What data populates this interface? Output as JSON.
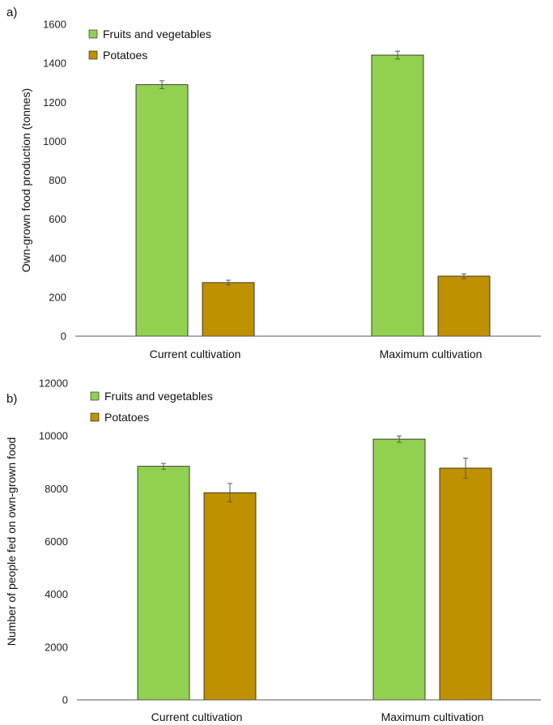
{
  "colors": {
    "fruits": "#92d050",
    "potatoes": "#bf9000",
    "axis": "#595959",
    "errorbar": "#595959"
  },
  "chart_data": [
    {
      "panel_label": "a)",
      "type": "bar",
      "ylabel": "Own-grown food production (tonnes)",
      "categories": [
        "Current cultivation",
        "Maximum cultivation"
      ],
      "ylim": [
        0,
        1600
      ],
      "yticks": [
        0,
        200,
        400,
        600,
        800,
        1000,
        1200,
        1400,
        1600
      ],
      "legend_position": "top-left",
      "series": [
        {
          "name": "Fruits and vegetables",
          "color": "#92d050",
          "values": [
            1290,
            1442
          ],
          "errors": [
            20,
            20
          ]
        },
        {
          "name": "Potatoes",
          "color": "#bf9000",
          "values": [
            275,
            308
          ],
          "errors": [
            12,
            12
          ]
        }
      ]
    },
    {
      "panel_label": "b)",
      "type": "bar",
      "ylabel": "Number of people fed on own-grown food",
      "categories": [
        "Current cultivation",
        "Maximum cultivation"
      ],
      "ylim": [
        0,
        12000
      ],
      "yticks": [
        0,
        2000,
        4000,
        6000,
        8000,
        10000,
        12000
      ],
      "legend_position": "top-left",
      "series": [
        {
          "name": "Fruits and vegetables",
          "color": "#92d050",
          "values": [
            8850,
            9880
          ],
          "errors": [
            110,
            120
          ]
        },
        {
          "name": "Potatoes",
          "color": "#bf9000",
          "values": [
            7850,
            8780
          ],
          "errors": [
            350,
            380
          ]
        }
      ]
    }
  ]
}
